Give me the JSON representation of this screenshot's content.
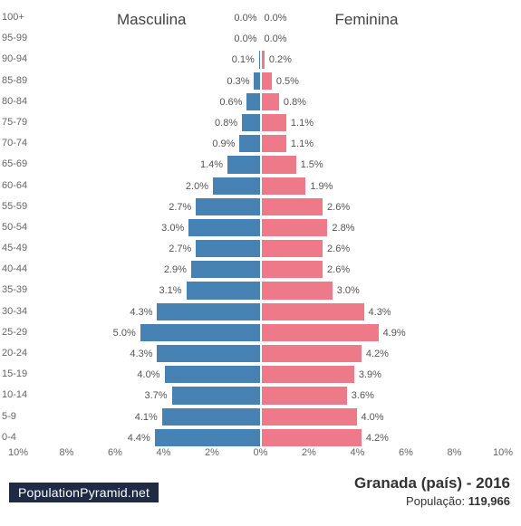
{
  "chart": {
    "type": "population-pyramid",
    "male_label": "Masculina",
    "female_label": "Feminina",
    "male_color": "#4682b4",
    "female_color": "#ee7989",
    "bar_border_color": "#ffffff",
    "background_color": "#ffffff",
    "text_color": "#555555",
    "axis_text_color": "#666666",
    "x_max_percent": 10,
    "x_ticks": [
      "10%",
      "8%",
      "6%",
      "4%",
      "2%",
      "0%",
      "2%",
      "4%",
      "6%",
      "8%",
      "10%"
    ],
    "age_groups": [
      {
        "label": "100+",
        "m": 0.0,
        "f": 0.0
      },
      {
        "label": "95-99",
        "m": 0.0,
        "f": 0.0
      },
      {
        "label": "90-94",
        "m": 0.1,
        "f": 0.2
      },
      {
        "label": "85-89",
        "m": 0.3,
        "f": 0.5
      },
      {
        "label": "80-84",
        "m": 0.6,
        "f": 0.8
      },
      {
        "label": "75-79",
        "m": 0.8,
        "f": 1.1
      },
      {
        "label": "70-74",
        "m": 0.9,
        "f": 1.1
      },
      {
        "label": "65-69",
        "m": 1.4,
        "f": 1.5
      },
      {
        "label": "60-64",
        "m": 2.0,
        "f": 1.9
      },
      {
        "label": "55-59",
        "m": 2.7,
        "f": 2.6
      },
      {
        "label": "50-54",
        "m": 3.0,
        "f": 2.8
      },
      {
        "label": "45-49",
        "m": 2.7,
        "f": 2.6
      },
      {
        "label": "40-44",
        "m": 2.9,
        "f": 2.6
      },
      {
        "label": "35-39",
        "m": 3.1,
        "f": 3.0
      },
      {
        "label": "30-34",
        "m": 4.3,
        "f": 4.3
      },
      {
        "label": "25-29",
        "m": 5.0,
        "f": 4.9
      },
      {
        "label": "20-24",
        "m": 4.3,
        "f": 4.2
      },
      {
        "label": "15-19",
        "m": 4.0,
        "f": 3.9
      },
      {
        "label": "10-14",
        "m": 3.7,
        "f": 3.6
      },
      {
        "label": "5-9",
        "m": 4.1,
        "f": 4.0
      },
      {
        "label": "0-4",
        "m": 4.4,
        "f": 4.2
      }
    ],
    "label_fontsize": 11,
    "title_fontsize": 17
  },
  "footer": {
    "site_badge": "PopulationPyramid.net",
    "badge_bg": "#1f2a44",
    "badge_fg": "#ffffff",
    "title": "Granada (país) - 2016",
    "population_label": "População: ",
    "population_value": "119,966"
  }
}
